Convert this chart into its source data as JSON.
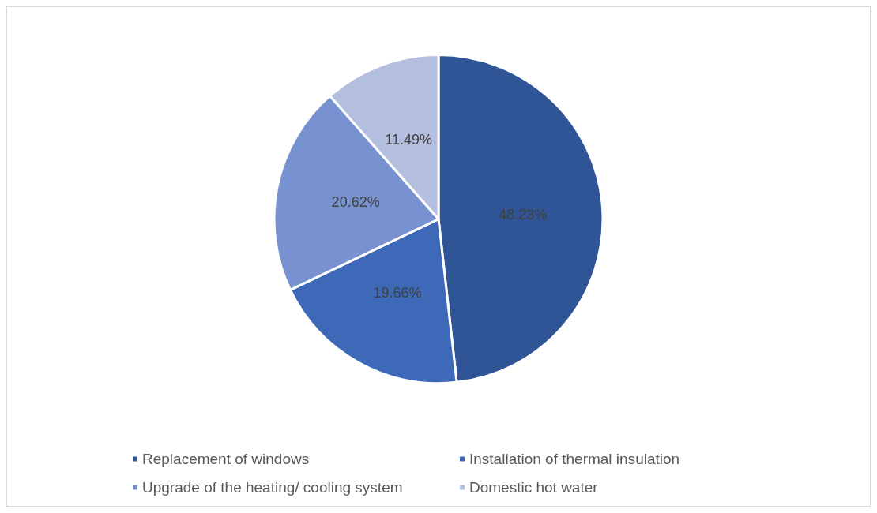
{
  "chart_data": {
    "type": "pie",
    "categories": [
      "Replacement of windows",
      "Installation of thermal insulation",
      "Upgrade of the heating/ cooling system",
      "Domestic hot water"
    ],
    "values": [
      48.23,
      19.66,
      20.62,
      11.49
    ],
    "colors": [
      "#2f5597",
      "#3d69b8",
      "#7891d0",
      "#b4bfe0"
    ],
    "value_labels": [
      "48.23%",
      "19.66%",
      "20.62%",
      "11.49%"
    ],
    "legend": "bottom"
  }
}
